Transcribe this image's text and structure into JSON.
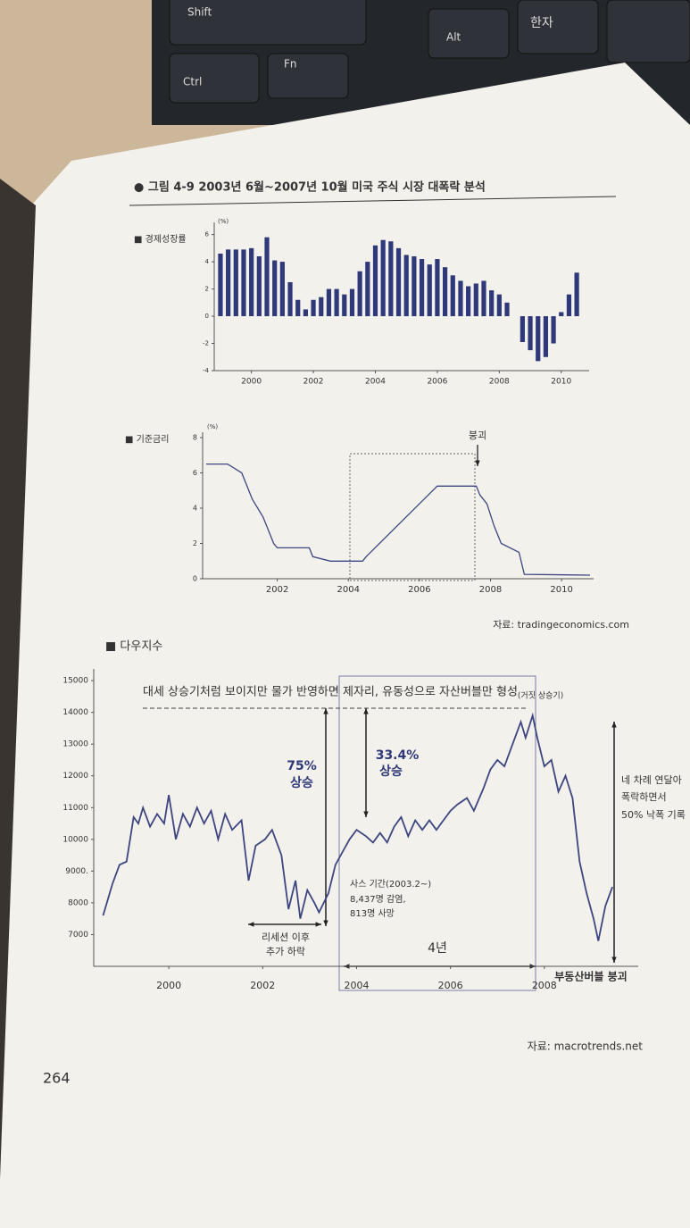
{
  "page": {
    "keyboard": [
      "Shift",
      "Ctrl",
      "Fn",
      "Alt",
      "한자"
    ],
    "figure_title": "● 그림 4-9  2003년 6월~2007년 10월 미국 주식 시장 대폭락 분석",
    "page_number": "264"
  },
  "chart_data": [
    {
      "type": "bar",
      "title": "■ 경제성장률",
      "y_label": "(%)",
      "color": "#2f3878",
      "x": [
        1999,
        1999.25,
        1999.5,
        1999.75,
        2000,
        2000.25,
        2000.5,
        2000.75,
        2001,
        2001.25,
        2001.5,
        2001.75,
        2002,
        2002.25,
        2002.5,
        2002.75,
        2003,
        2003.25,
        2003.5,
        2003.75,
        2004,
        2004.25,
        2004.5,
        2004.75,
        2005,
        2005.25,
        2005.5,
        2005.75,
        2006,
        2006.25,
        2006.5,
        2006.75,
        2007,
        2007.25,
        2007.5,
        2007.75,
        2008,
        2008.25,
        2008.5,
        2008.75,
        2009,
        2009.25,
        2009.5,
        2009.75,
        2010,
        2010.25,
        2010.5
      ],
      "values": [
        4.6,
        4.9,
        4.9,
        4.9,
        5.0,
        4.4,
        5.8,
        4.1,
        4.0,
        2.5,
        1.2,
        0.5,
        1.2,
        1.4,
        2.0,
        2.0,
        1.6,
        2.0,
        3.3,
        4.0,
        5.2,
        5.6,
        5.5,
        5.0,
        4.5,
        4.4,
        4.2,
        3.8,
        4.2,
        3.6,
        3.0,
        2.6,
        2.2,
        2.4,
        2.6,
        1.9,
        1.6,
        1.0,
        null,
        -1.9,
        -2.5,
        -3.3,
        -3.0,
        -2.0,
        0.3,
        1.6,
        3.2
      ],
      "xlim": [
        1998.8,
        2010.9
      ],
      "xticks": [
        2000,
        2002,
        2004,
        2006,
        2008,
        2010
      ],
      "ylim": [
        -4,
        6.5
      ],
      "yticks": [
        -4,
        -2,
        0,
        2,
        4,
        6
      ]
    },
    {
      "type": "line",
      "title": "■ 기준금리",
      "y_label": "(%)",
      "color": "#3d4580",
      "x": [
        2000.0,
        2000.3,
        2000.6,
        2001.0,
        2001.3,
        2001.6,
        2001.9,
        2002.0,
        2002.9,
        2003.0,
        2003.5,
        2004.4,
        2004.5,
        2005.0,
        2005.5,
        2006.0,
        2006.5,
        2007.6,
        2007.7,
        2007.9,
        2008.1,
        2008.3,
        2008.8,
        2008.95,
        2010.8
      ],
      "values": [
        6.5,
        6.5,
        6.5,
        6.0,
        4.5,
        3.5,
        2.0,
        1.75,
        1.75,
        1.25,
        1.0,
        1.0,
        1.25,
        2.25,
        3.25,
        4.25,
        5.25,
        5.25,
        4.75,
        4.25,
        3.0,
        2.0,
        1.5,
        0.25,
        0.2
      ],
      "xlim": [
        1999.9,
        2010.9
      ],
      "xticks": [
        2002,
        2004,
        2006,
        2008,
        2010
      ],
      "ylim": [
        0,
        8
      ],
      "yticks": [
        0,
        2,
        4,
        6,
        8
      ],
      "annotations": [
        "붕괴"
      ],
      "source": "자료: tradingeconomics.com"
    },
    {
      "type": "line",
      "title": "■ 다우지수",
      "color": "#3d4580",
      "x": [
        1998.6,
        1998.8,
        1998.95,
        1999.1,
        1999.25,
        1999.35,
        1999.45,
        1999.6,
        1999.75,
        1999.9,
        2000.0,
        2000.15,
        2000.3,
        2000.45,
        2000.6,
        2000.75,
        2000.9,
        2001.05,
        2001.2,
        2001.35,
        2001.55,
        2001.7,
        2001.85,
        2002.05,
        2002.2,
        2002.4,
        2002.55,
        2002.7,
        2002.8,
        2002.95,
        2003.1,
        2003.2,
        2003.4,
        2003.55,
        2003.7,
        2003.85,
        2004.0,
        2004.2,
        2004.35,
        2004.5,
        2004.65,
        2004.8,
        2004.95,
        2005.1,
        2005.25,
        2005.4,
        2005.55,
        2005.7,
        2005.85,
        2006.0,
        2006.15,
        2006.35,
        2006.5,
        2006.7,
        2006.85,
        2007.0,
        2007.15,
        2007.35,
        2007.5,
        2007.6,
        2007.75,
        2007.85,
        2008.0,
        2008.15,
        2008.3,
        2008.45,
        2008.6,
        2008.75,
        2008.9,
        2009.05,
        2009.15,
        2009.3,
        2009.45
      ],
      "values": [
        7600,
        8600,
        9200,
        9300,
        10700,
        10500,
        11000,
        10400,
        10800,
        10500,
        11400,
        10000,
        10800,
        10400,
        11000,
        10500,
        10900,
        10000,
        10800,
        10300,
        10600,
        8700,
        9800,
        10000,
        10300,
        9500,
        7800,
        8700,
        7500,
        8400,
        8000,
        7700,
        8300,
        9200,
        9600,
        10000,
        10300,
        10100,
        9900,
        10200,
        9900,
        10400,
        10700,
        10100,
        10600,
        10300,
        10600,
        10300,
        10600,
        10900,
        11100,
        11300,
        10900,
        11600,
        12200,
        12500,
        12300,
        13100,
        13700,
        13200,
        13900,
        13200,
        12300,
        12500,
        11500,
        12000,
        11300,
        9300,
        8300,
        7500,
        6800,
        7900,
        8500
      ],
      "xlim": [
        1998.4,
        2010.0
      ],
      "xticks": [
        2000,
        2002,
        2004,
        2006,
        2008
      ],
      "ylim": [
        6000,
        15200
      ],
      "yticks": [
        7000,
        8000,
        {
          "value": 9000,
          "label": "9000."
        },
        10000,
        11000,
        12000,
        13000,
        14000,
        15000
      ],
      "annotations": [
        "대세 상승기처럼 보이지만 물가 반영하면 제자리, 유동성으로 자산버블만 형성",
        "(거짓 상승기)",
        "75%",
        "상승",
        "33.4%",
        "상승",
        "네 차례 연달아",
        "폭락하면서",
        "50% 낙폭 기록",
        "리세션 이후",
        "추가 하락",
        "사스 기간(2003.2~)",
        "8,437명 감염,",
        "813명 사망",
        "4년",
        "부동산버블 붕괴"
      ],
      "source": "자료: macrotrends.net"
    }
  ]
}
